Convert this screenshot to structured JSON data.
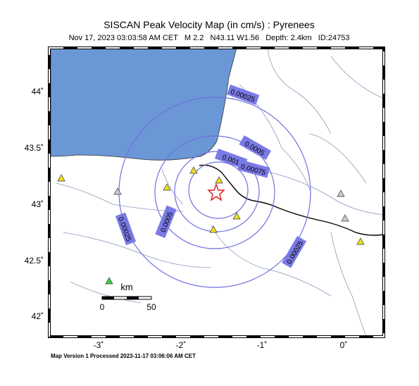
{
  "title": "SISCAN Peak Velocity Map (in cm/s) : Pyrenees",
  "subtitle": "Nov 17, 2023 03:03:58 AM CET   M 2.2   N43.11 W1.56   Depth: 2.4km   ID:24753",
  "lat_labels": [
    "44˚",
    "43.5˚",
    "43˚",
    "42.5˚",
    "42˚"
  ],
  "lon_labels": [
    "-3˚",
    "-2˚",
    "-1˚",
    "0˚"
  ],
  "contour_labels": [
    "0.00025",
    "0.0005",
    "0.001",
    "0.00075",
    "0.0005",
    "0.00025",
    "0.00025"
  ],
  "scale": {
    "unit": "km",
    "start": "0",
    "end": "50"
  },
  "footer": "Map Version 1 Processed 2023-11-17 03:06:06 AM CET"
}
